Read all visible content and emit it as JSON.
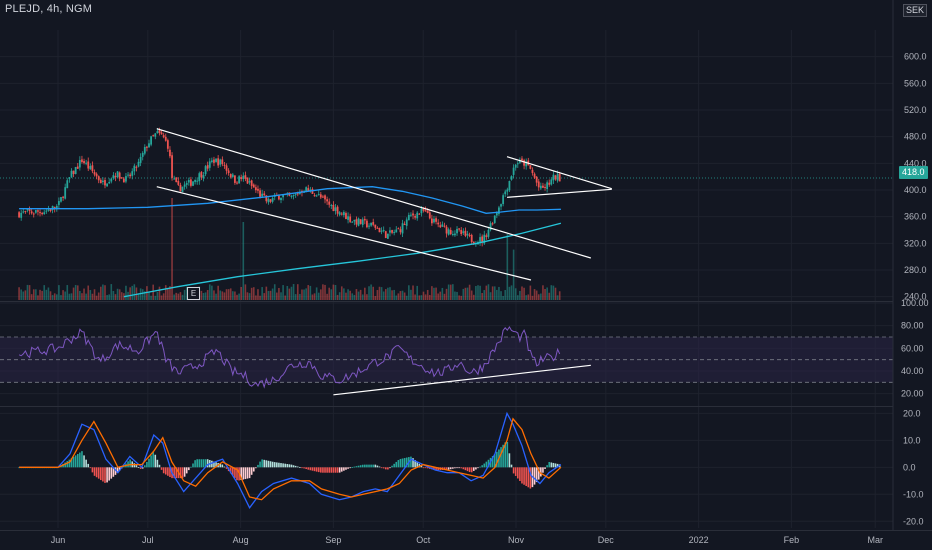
{
  "header": {
    "title": "PLEJD, 4h, NGM",
    "currency": "SEK"
  },
  "last_price_label": "418.0",
  "earnings_marker": "E",
  "colors": {
    "background": "#131722",
    "up_candle": "#26a69a",
    "down_candle": "#ef5350",
    "ma_fast": "#2196f3",
    "ma_slow": "#26c6da",
    "rsi_line": "#7e57c2",
    "rsi_band": "#2a2446",
    "macd_line": "#2962ff",
    "signal_line": "#ff6d00",
    "trendline": "#ffffff"
  },
  "chart_data": [
    {
      "type": "candlestick",
      "panel": "price",
      "ylim": [
        235,
        640
      ],
      "y_ticks": [
        "600.0",
        "560.0",
        "520.0",
        "480.0",
        "440.0",
        "400.0",
        "360.0",
        "320.0",
        "280.0",
        "240.0"
      ],
      "y_tick_values": [
        600,
        560,
        520,
        480,
        440,
        400,
        360,
        320,
        280,
        240
      ],
      "last_price": 418.0,
      "x_ticks": [
        "Jun",
        "Jul",
        "Aug",
        "Sep",
        "Oct",
        "Nov",
        "Dec",
        "2022",
        "Feb",
        "Mar"
      ],
      "x_tick_days": [
        0,
        30,
        61,
        92,
        122,
        153,
        183,
        214,
        245,
        273
      ],
      "first_day": -13,
      "last_day": 168,
      "close_anchors": [
        [
          -13,
          365
        ],
        [
          -5,
          368
        ],
        [
          0,
          375
        ],
        [
          4,
          420
        ],
        [
          8,
          445
        ],
        [
          11,
          430
        ],
        [
          15,
          410
        ],
        [
          19,
          425
        ],
        [
          23,
          415
        ],
        [
          27,
          440
        ],
        [
          30,
          470
        ],
        [
          33,
          485
        ],
        [
          35,
          480
        ],
        [
          37,
          465
        ],
        [
          38,
          420
        ],
        [
          40,
          402
        ],
        [
          44,
          410
        ],
        [
          48,
          425
        ],
        [
          52,
          445
        ],
        [
          55,
          440
        ],
        [
          59,
          415
        ],
        [
          62,
          418
        ],
        [
          66,
          400
        ],
        [
          70,
          382
        ],
        [
          74,
          392
        ],
        [
          78,
          388
        ],
        [
          82,
          402
        ],
        [
          86,
          395
        ],
        [
          90,
          380
        ],
        [
          94,
          368
        ],
        [
          98,
          355
        ],
        [
          102,
          350
        ],
        [
          106,
          345
        ],
        [
          110,
          332
        ],
        [
          114,
          340
        ],
        [
          118,
          362
        ],
        [
          122,
          368
        ],
        [
          126,
          350
        ],
        [
          130,
          340
        ],
        [
          134,
          336
        ],
        [
          138,
          326
        ],
        [
          142,
          325
        ],
        [
          146,
          362
        ],
        [
          150,
          405
        ],
        [
          153,
          442
        ],
        [
          156,
          440
        ],
        [
          158,
          430
        ],
        [
          161,
          400
        ],
        [
          163,
          405
        ],
        [
          166,
          420
        ],
        [
          168,
          418
        ]
      ],
      "ma_fast": [
        [
          -13,
          372
        ],
        [
          10,
          372
        ],
        [
          30,
          374
        ],
        [
          50,
          380
        ],
        [
          70,
          390
        ],
        [
          90,
          402
        ],
        [
          105,
          405
        ],
        [
          115,
          398
        ],
        [
          125,
          388
        ],
        [
          135,
          376
        ],
        [
          143,
          365
        ],
        [
          148,
          367
        ],
        [
          154,
          370
        ],
        [
          160,
          370
        ],
        [
          168,
          371
        ]
      ],
      "ma_slow": [
        [
          22,
          240
        ],
        [
          40,
          255
        ],
        [
          60,
          270
        ],
        [
          80,
          282
        ],
        [
          100,
          293
        ],
        [
          120,
          305
        ],
        [
          140,
          320
        ],
        [
          155,
          335
        ],
        [
          168,
          350
        ]
      ],
      "volume_spikes": [
        [
          38,
          0.85
        ],
        [
          62,
          0.65
        ],
        [
          150,
          0.55
        ],
        [
          152,
          0.42
        ]
      ],
      "trendlines": [
        {
          "from": [
            33,
            492
          ],
          "to": [
            178,
            298
          ]
        },
        {
          "from": [
            33,
            405
          ],
          "to": [
            158,
            265
          ]
        },
        {
          "from": [
            150,
            450
          ],
          "to": [
            185,
            402
          ]
        },
        {
          "from": [
            150,
            389
          ],
          "to": [
            185,
            401
          ]
        }
      ]
    },
    {
      "type": "line",
      "panel": "rsi",
      "ylim": [
        10,
        100
      ],
      "y_ticks": [
        "100.00",
        "80.00",
        "60.00",
        "40.00",
        "20.00"
      ],
      "y_tick_values": [
        100,
        80,
        60,
        40,
        20
      ],
      "band": [
        30,
        70
      ],
      "midline": 50,
      "anchors": [
        [
          -13,
          55
        ],
        [
          0,
          60
        ],
        [
          4,
          68
        ],
        [
          8,
          74
        ],
        [
          14,
          48
        ],
        [
          20,
          63
        ],
        [
          27,
          58
        ],
        [
          33,
          75
        ],
        [
          36,
          50
        ],
        [
          40,
          38
        ],
        [
          47,
          46
        ],
        [
          53,
          58
        ],
        [
          58,
          40
        ],
        [
          62,
          36
        ],
        [
          66,
          28
        ],
        [
          72,
          32
        ],
        [
          78,
          45
        ],
        [
          84,
          48
        ],
        [
          88,
          36
        ],
        [
          94,
          32
        ],
        [
          98,
          36
        ],
        [
          102,
          42
        ],
        [
          106,
          48
        ],
        [
          110,
          52
        ],
        [
          114,
          60
        ],
        [
          118,
          50
        ],
        [
          122,
          44
        ],
        [
          126,
          38
        ],
        [
          130,
          40
        ],
        [
          134,
          48
        ],
        [
          138,
          38
        ],
        [
          142,
          44
        ],
        [
          146,
          60
        ],
        [
          150,
          78
        ],
        [
          152,
          75
        ],
        [
          154,
          70
        ],
        [
          156,
          72
        ],
        [
          158,
          52
        ],
        [
          160,
          46
        ],
        [
          162,
          50
        ],
        [
          165,
          52
        ],
        [
          168,
          57
        ]
      ],
      "trendline": {
        "from": [
          92,
          19
        ],
        "to": [
          178,
          45
        ]
      }
    },
    {
      "type": "line",
      "panel": "macd",
      "ylim": [
        -22.5,
        22
      ],
      "y_ticks": [
        "20.0",
        "10.0",
        "0.0",
        "-10.0",
        "-20.0"
      ],
      "y_tick_values": [
        20,
        10,
        0,
        -10,
        -20
      ],
      "series": [
        {
          "key": "macd",
          "anchors": [
            [
              -13,
              0
            ],
            [
              0,
              0
            ],
            [
              4,
              5
            ],
            [
              8,
              16
            ],
            [
              12,
              14
            ],
            [
              16,
              3
            ],
            [
              20,
              -2
            ],
            [
              24,
              4
            ],
            [
              28,
              0
            ],
            [
              32,
              12
            ],
            [
              35,
              9
            ],
            [
              38,
              -2
            ],
            [
              42,
              -9
            ],
            [
              46,
              -4
            ],
            [
              50,
              1
            ],
            [
              55,
              3
            ],
            [
              60,
              -6
            ],
            [
              64,
              -15
            ],
            [
              68,
              -9
            ],
            [
              72,
              -6
            ],
            [
              78,
              -4
            ],
            [
              84,
              -6
            ],
            [
              88,
              -10
            ],
            [
              94,
              -12
            ],
            [
              98,
              -11
            ],
            [
              102,
              -9
            ],
            [
              106,
              -8
            ],
            [
              110,
              -9
            ],
            [
              114,
              -3
            ],
            [
              118,
              3
            ],
            [
              122,
              1
            ],
            [
              126,
              -1
            ],
            [
              130,
              -2
            ],
            [
              134,
              -2
            ],
            [
              138,
              -5
            ],
            [
              142,
              -3
            ],
            [
              146,
              5
            ],
            [
              150,
              20
            ],
            [
              152,
              16
            ],
            [
              155,
              8
            ],
            [
              158,
              -3
            ],
            [
              161,
              -6
            ],
            [
              164,
              -2
            ],
            [
              168,
              1
            ]
          ]
        },
        {
          "key": "signal",
          "anchors": [
            [
              -13,
              0
            ],
            [
              0,
              0
            ],
            [
              4,
              2
            ],
            [
              8,
              10
            ],
            [
              12,
              17
            ],
            [
              16,
              9
            ],
            [
              20,
              0
            ],
            [
              24,
              1
            ],
            [
              28,
              1
            ],
            [
              32,
              6
            ],
            [
              35,
              11
            ],
            [
              38,
              2
            ],
            [
              42,
              -5
            ],
            [
              46,
              -7
            ],
            [
              50,
              -2
            ],
            [
              55,
              2
            ],
            [
              60,
              -1
            ],
            [
              64,
              -11
            ],
            [
              68,
              -12
            ],
            [
              72,
              -8
            ],
            [
              78,
              -5
            ],
            [
              84,
              -5
            ],
            [
              88,
              -8
            ],
            [
              94,
              -10
            ],
            [
              98,
              -11
            ],
            [
              102,
              -10
            ],
            [
              106,
              -9
            ],
            [
              110,
              -8
            ],
            [
              114,
              -6
            ],
            [
              118,
              -1
            ],
            [
              122,
              1
            ],
            [
              126,
              0
            ],
            [
              130,
              -1
            ],
            [
              134,
              -2
            ],
            [
              138,
              -3
            ],
            [
              142,
              -4
            ],
            [
              146,
              0
            ],
            [
              150,
              10
            ],
            [
              152,
              18
            ],
            [
              155,
              14
            ],
            [
              158,
              5
            ],
            [
              161,
              -2
            ],
            [
              164,
              -4
            ],
            [
              168,
              0
            ]
          ]
        }
      ]
    }
  ]
}
